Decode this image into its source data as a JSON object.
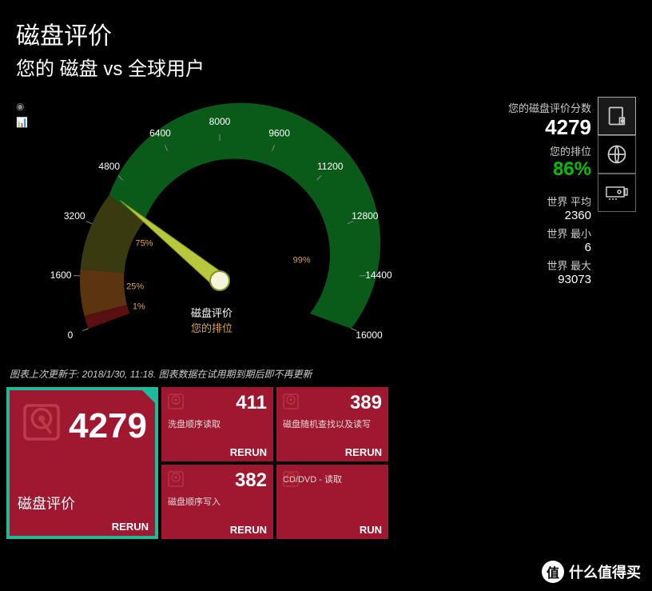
{
  "header": {
    "title": "磁盘评价",
    "subtitle": "您的 磁盘 vs 全球用户"
  },
  "gauge": {
    "min": 0,
    "max": 16000,
    "ticks": [
      0,
      1600,
      3200,
      4800,
      6400,
      8000,
      9600,
      11200,
      12800,
      14400,
      16000
    ],
    "value": 4279,
    "percentile": 86,
    "label_main": "磁盘评价",
    "label_sub": "您的排位",
    "markers": [
      {
        "pct": "1%",
        "color": "#8b1a1a"
      },
      {
        "pct": "25%",
        "color": "#8b5a1a"
      },
      {
        "pct": "75%",
        "color": "#6b5a1a"
      },
      {
        "pct": "99%",
        "color": "#d9a441"
      }
    ],
    "colors": {
      "arc_low": "#5a1010",
      "arc_mid1": "#5a3510",
      "arc_mid2": "#3a3a10",
      "arc_high": "#0a5a1a",
      "needle": "#b8c83c",
      "tick_text": "#ffffff",
      "pct_text": "#d9a441"
    }
  },
  "stats": {
    "score_label": "您的磁盘评价分数",
    "score": "4279",
    "rank_label": "您的排位",
    "rank_pct": "86%",
    "world_avg_label": "世界 平均",
    "world_avg": "2360",
    "world_min_label": "世界 最小",
    "world_min": "6",
    "world_max_label": "世界 最大",
    "world_max": "93073"
  },
  "note": "图表上次更新于: 2018/1/30, 11:18. 图表数据在试用期到期后即不再更新",
  "tiles": {
    "main": {
      "score": "4279",
      "label": "磁盘评价",
      "action": "RERUN"
    },
    "grid": [
      {
        "val": "411",
        "lbl": "洗盘顺序读取",
        "action": "RERUN"
      },
      {
        "val": "389",
        "lbl": "磁盘随机查找以及读写",
        "action": "RERUN"
      },
      {
        "val": "382",
        "lbl": "磁盘顺序写入",
        "action": "RERUN"
      },
      {
        "val": "",
        "lbl": "CD/DVD - 读取",
        "action": "RUN"
      }
    ],
    "tile_bg": "#a01830",
    "highlight": "#1abc9c"
  },
  "watermark": "什么值得买",
  "watermark_badge": "值"
}
